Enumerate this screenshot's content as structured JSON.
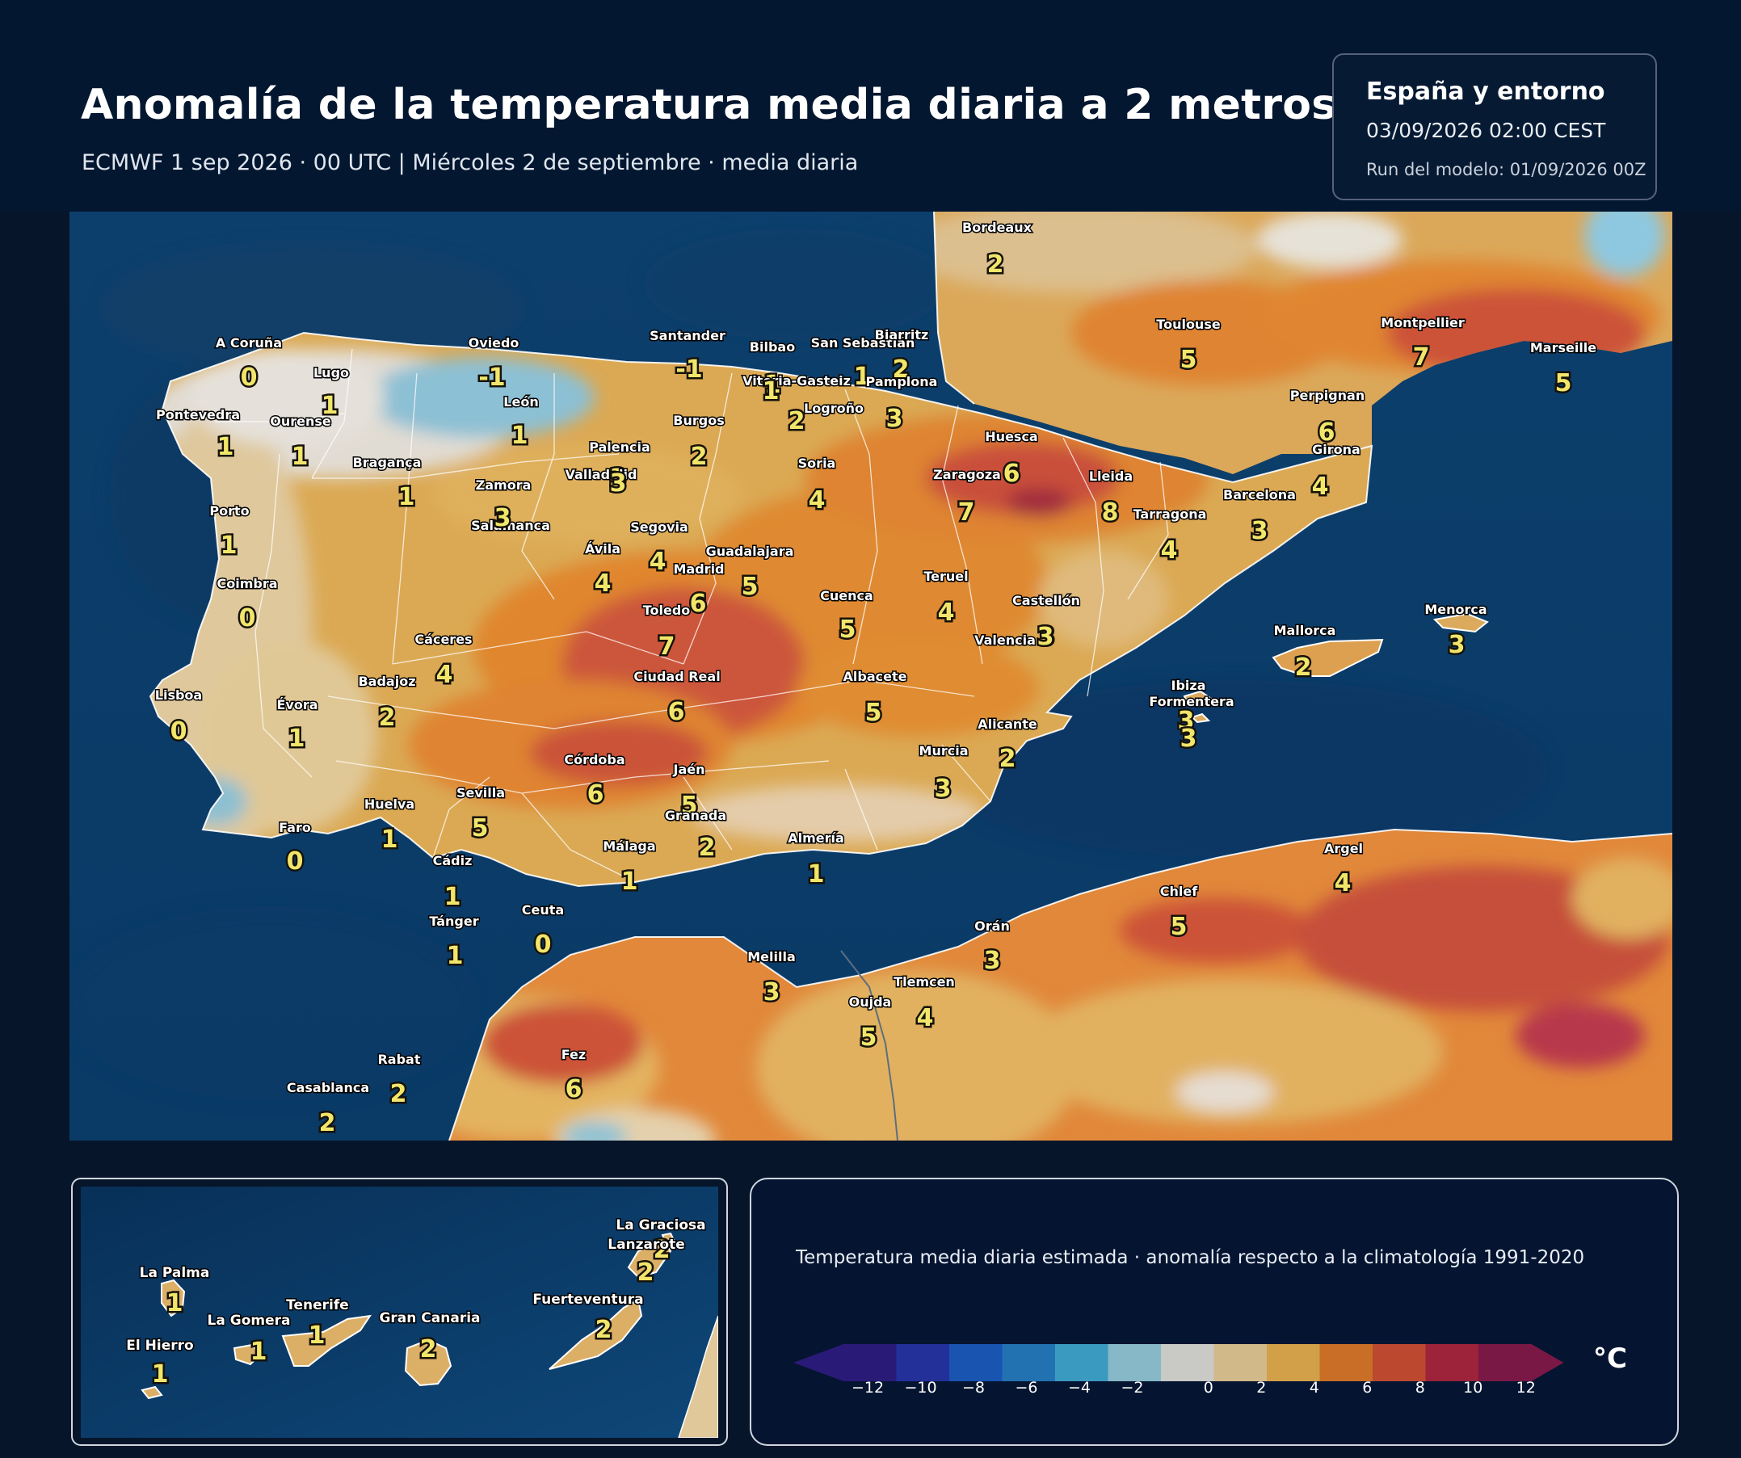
{
  "header": {
    "title": "Anomalía de la temperatura media diaria a 2 metros",
    "subtitle": "ECMWF 1 sep 2026 · 00 UTC  |  Miércoles 2 de septiembre · media diaria"
  },
  "info": {
    "region": "España y entorno",
    "datetime": "03/09/2026  02:00 CEST",
    "run": "Run del modelo: 01/09/2026 00Z"
  },
  "cities": [
    {
      "name": "Bordeaux",
      "value": "2"
    },
    {
      "name": "A Coruña",
      "value": "0"
    },
    {
      "name": "Lugo",
      "value": "1"
    },
    {
      "name": "Oviedo",
      "value": "-1"
    },
    {
      "name": "Santander",
      "value": "-1"
    },
    {
      "name": "Bilbao",
      "value": "1"
    },
    {
      "name": "San Sebastián",
      "value": "1"
    },
    {
      "name": "Biarritz",
      "value": "2"
    },
    {
      "name": "Toulouse",
      "value": "5"
    },
    {
      "name": "Montpellier",
      "value": "7"
    },
    {
      "name": "Marseille",
      "value": "5"
    },
    {
      "name": "Vitoria-Gasteiz",
      "value": "1"
    },
    {
      "name": "Pamplona",
      "value": "3"
    },
    {
      "name": "León",
      "value": "1"
    },
    {
      "name": "Pontevedra",
      "value": "1"
    },
    {
      "name": "Ourense",
      "value": "1"
    },
    {
      "name": "Logroño",
      "value": "2"
    },
    {
      "name": "Burgos",
      "value": "2"
    },
    {
      "name": "Perpignan",
      "value": "6"
    },
    {
      "name": "Palencia",
      "value": "3"
    },
    {
      "name": "Huesca",
      "value": "6"
    },
    {
      "name": "Girona",
      "value": "4"
    },
    {
      "name": "Bragança",
      "value": "1"
    },
    {
      "name": "Soria",
      "value": "4"
    },
    {
      "name": "Valladolid",
      "value": "3"
    },
    {
      "name": "Zaragoza",
      "value": "7"
    },
    {
      "name": "Lleida",
      "value": "8"
    },
    {
      "name": "Zamora",
      "value": "3"
    },
    {
      "name": "Barcelona",
      "value": "3"
    },
    {
      "name": "Tarragona",
      "value": "4"
    },
    {
      "name": "Porto",
      "value": "1"
    },
    {
      "name": "Salamanca",
      "value": "3"
    },
    {
      "name": "Segovia",
      "value": "4"
    },
    {
      "name": "Guadalajara",
      "value": "5"
    },
    {
      "name": "Ávila",
      "value": "4"
    },
    {
      "name": "Madrid",
      "value": "6"
    },
    {
      "name": "Teruel",
      "value": "4"
    },
    {
      "name": "Coimbra",
      "value": "0"
    },
    {
      "name": "Cuenca",
      "value": "5"
    },
    {
      "name": "Castellón",
      "value": "3"
    },
    {
      "name": "Toledo",
      "value": "7"
    },
    {
      "name": "Menorca",
      "value": "3"
    },
    {
      "name": "Mallorca",
      "value": "2"
    },
    {
      "name": "Cáceres",
      "value": "4"
    },
    {
      "name": "Valencia",
      "value": "3"
    },
    {
      "name": "Albacete",
      "value": "5"
    },
    {
      "name": "Ciudad Real",
      "value": "6"
    },
    {
      "name": "Badajoz",
      "value": "2"
    },
    {
      "name": "Ibiza",
      "value": "3"
    },
    {
      "name": "Formentera",
      "value": "3"
    },
    {
      "name": "Lisboa",
      "value": "0"
    },
    {
      "name": "Évora",
      "value": "1"
    },
    {
      "name": "Alicante",
      "value": "2"
    },
    {
      "name": "Murcia",
      "value": "3"
    },
    {
      "name": "Córdoba",
      "value": "6"
    },
    {
      "name": "Jaén",
      "value": "5"
    },
    {
      "name": "Sevilla",
      "value": "5"
    },
    {
      "name": "Huelva",
      "value": "1"
    },
    {
      "name": "Granada",
      "value": "2"
    },
    {
      "name": "Faro",
      "value": "0"
    },
    {
      "name": "Almería",
      "value": "1"
    },
    {
      "name": "Málaga",
      "value": "1"
    },
    {
      "name": "Argel",
      "value": "4"
    },
    {
      "name": "Cádiz",
      "value": "1"
    },
    {
      "name": "Chlef",
      "value": "5"
    },
    {
      "name": "Tánger",
      "value": "1"
    },
    {
      "name": "Ceuta",
      "value": "0"
    },
    {
      "name": "Orán",
      "value": "3"
    },
    {
      "name": "Melilla",
      "value": "3"
    },
    {
      "name": "Tlemcen",
      "value": "4"
    },
    {
      "name": "Oujda",
      "value": "5"
    },
    {
      "name": "Fez",
      "value": "6"
    },
    {
      "name": "Rabat",
      "value": "2"
    },
    {
      "name": "Casablanca",
      "value": "2"
    }
  ],
  "canarias": [
    {
      "name": "La Graciosa",
      "value": "2"
    },
    {
      "name": "Lanzarote",
      "value": "2"
    },
    {
      "name": "La Palma",
      "value": "1"
    },
    {
      "name": "Fuerteventura",
      "value": "2"
    },
    {
      "name": "Tenerife",
      "value": "1"
    },
    {
      "name": "Gran Canaria",
      "value": "2"
    },
    {
      "name": "La Gomera",
      "value": "1"
    },
    {
      "name": "El Hierro",
      "value": "1"
    }
  ],
  "legend": {
    "title": "Temperatura media diaria estimada · anomalía respecto a la climatología 1991-2020",
    "unit": "°C",
    "ticks": [
      "−12",
      "−10",
      "−8",
      "−6",
      "−4",
      "−2",
      "0",
      "2",
      "4",
      "6",
      "8",
      "10",
      "12"
    ],
    "colors": [
      "#2a1a78",
      "#23309a",
      "#1854b0",
      "#2272b2",
      "#3b9ac0",
      "#86b8c8",
      "#c9c9c6",
      "#d2b98a",
      "#d1a048",
      "#c96e26",
      "#bc4830",
      "#9c2339",
      "#7a1845"
    ]
  }
}
